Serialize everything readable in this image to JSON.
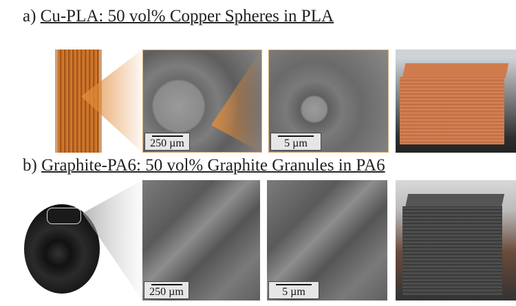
{
  "row_a": {
    "label": "a)",
    "title": "Cu-PLA: 50 vol% Copper Spheres in PLA",
    "scale_low": "250 µm",
    "scale_high": "5 µm",
    "accent": "#e08a3a"
  },
  "row_b": {
    "label": "b)",
    "title": "Graphite-PA6: 50 vol% Graphite Granules in PA6",
    "scale_low": "250 µm",
    "scale_high": "5 µm"
  }
}
